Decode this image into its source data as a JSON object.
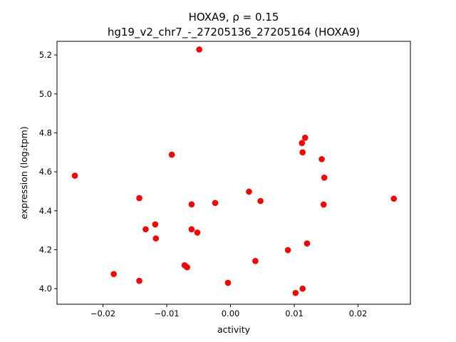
{
  "chart_data": {
    "type": "scatter",
    "title_line1": "HOXA9, ρ = 0.15",
    "title_line2": "hg19_v2_chr7_-_27205136_27205164 (HOXA9)",
    "xlabel": "activity",
    "ylabel": "expression (log₂tpm)",
    "xlim": [
      -0.0272,
      0.0282
    ],
    "ylim": [
      3.92,
      5.27
    ],
    "x_ticks": [
      -0.02,
      -0.01,
      0.0,
      0.01,
      0.02
    ],
    "x_tick_labels": [
      "−0.02",
      "−0.01",
      "0.00",
      "0.01",
      "0.02"
    ],
    "y_ticks": [
      4.0,
      4.2,
      4.4,
      4.6,
      4.8,
      5.0,
      5.2
    ],
    "y_tick_labels": [
      "4.0",
      "4.2",
      "4.4",
      "4.6",
      "4.8",
      "5.0",
      "5.2"
    ],
    "grid": false,
    "marker_color": "#ff0000",
    "points": [
      {
        "x": -0.0244,
        "y": 4.58
      },
      {
        "x": -0.0183,
        "y": 4.075
      },
      {
        "x": -0.0143,
        "y": 4.465
      },
      {
        "x": -0.0143,
        "y": 4.04
      },
      {
        "x": -0.0133,
        "y": 4.305
      },
      {
        "x": -0.0118,
        "y": 4.33
      },
      {
        "x": -0.0117,
        "y": 4.258
      },
      {
        "x": -0.0092,
        "y": 4.688
      },
      {
        "x": -0.0072,
        "y": 4.12
      },
      {
        "x": -0.0068,
        "y": 4.11
      },
      {
        "x": -0.0061,
        "y": 4.433
      },
      {
        "x": -0.0061,
        "y": 4.305
      },
      {
        "x": -0.0052,
        "y": 4.288
      },
      {
        "x": -0.0049,
        "y": 5.228
      },
      {
        "x": -0.0024,
        "y": 4.44
      },
      {
        "x": -0.0004,
        "y": 4.03
      },
      {
        "x": 0.0029,
        "y": 4.498
      },
      {
        "x": 0.0039,
        "y": 4.142
      },
      {
        "x": 0.0047,
        "y": 4.45
      },
      {
        "x": 0.009,
        "y": 4.198
      },
      {
        "x": 0.0102,
        "y": 3.978
      },
      {
        "x": 0.0112,
        "y": 4.748
      },
      {
        "x": 0.0113,
        "y": 4.7
      },
      {
        "x": 0.0113,
        "y": 4.0
      },
      {
        "x": 0.0117,
        "y": 4.775
      },
      {
        "x": 0.012,
        "y": 4.232
      },
      {
        "x": 0.0143,
        "y": 4.665
      },
      {
        "x": 0.0146,
        "y": 4.432
      },
      {
        "x": 0.0147,
        "y": 4.57
      },
      {
        "x": 0.0256,
        "y": 4.462
      }
    ]
  }
}
